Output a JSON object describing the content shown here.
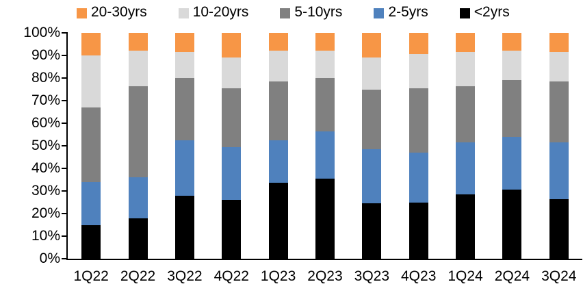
{
  "chart_data": {
    "type": "bar",
    "variant": "stacked-100-percent-column",
    "title": "",
    "categories": [
      "1Q22",
      "2Q22",
      "3Q22",
      "4Q22",
      "1Q23",
      "2Q23",
      "3Q23",
      "4Q23",
      "1Q24",
      "2Q24",
      "3Q24"
    ],
    "series": [
      {
        "name": "<2yrs",
        "color": "#000000",
        "values": [
          15,
          18,
          28,
          26,
          33.5,
          35.5,
          24.5,
          25,
          28.5,
          30.5,
          26.5
        ]
      },
      {
        "name": "2-5yrs",
        "color": "#4F81BD",
        "values": [
          19,
          18,
          24.5,
          23.5,
          19,
          21,
          24,
          22,
          23,
          23.5,
          25
        ]
      },
      {
        "name": "5-10yrs",
        "color": "#808080",
        "values": [
          33,
          40.5,
          27.5,
          26,
          26,
          23.5,
          26.5,
          28.5,
          25,
          25,
          27
        ]
      },
      {
        "name": "10-20yrs",
        "color": "#D9D9D9",
        "values": [
          23,
          15.5,
          11.5,
          13.5,
          13.5,
          12,
          14,
          15,
          15,
          13,
          13
        ]
      },
      {
        "name": "20-30yrs",
        "color": "#F79646",
        "values": [
          10,
          8,
          8.5,
          11,
          8,
          8,
          11,
          9.5,
          8.5,
          8,
          8.5
        ]
      }
    ],
    "legend": {
      "position": "top",
      "order": [
        "20-30yrs",
        "10-20yrs",
        "5-10yrs",
        "2-5yrs",
        "<2yrs"
      ]
    },
    "y_axis": {
      "min": 0,
      "max": 100,
      "step": 10,
      "tick_labels": [
        "0%",
        "10%",
        "20%",
        "30%",
        "40%",
        "50%",
        "60%",
        "70%",
        "80%",
        "90%",
        "100%"
      ]
    },
    "x_axis": {
      "tick_labels": [
        "1Q22",
        "2Q22",
        "3Q22",
        "4Q22",
        "1Q23",
        "2Q23",
        "3Q23",
        "4Q23",
        "1Q24",
        "2Q24",
        "3Q24"
      ]
    },
    "grid": false,
    "unit": "%"
  },
  "colors": {
    "background": "#FFFFFF",
    "axis": "#000000",
    "text": "#000000"
  }
}
